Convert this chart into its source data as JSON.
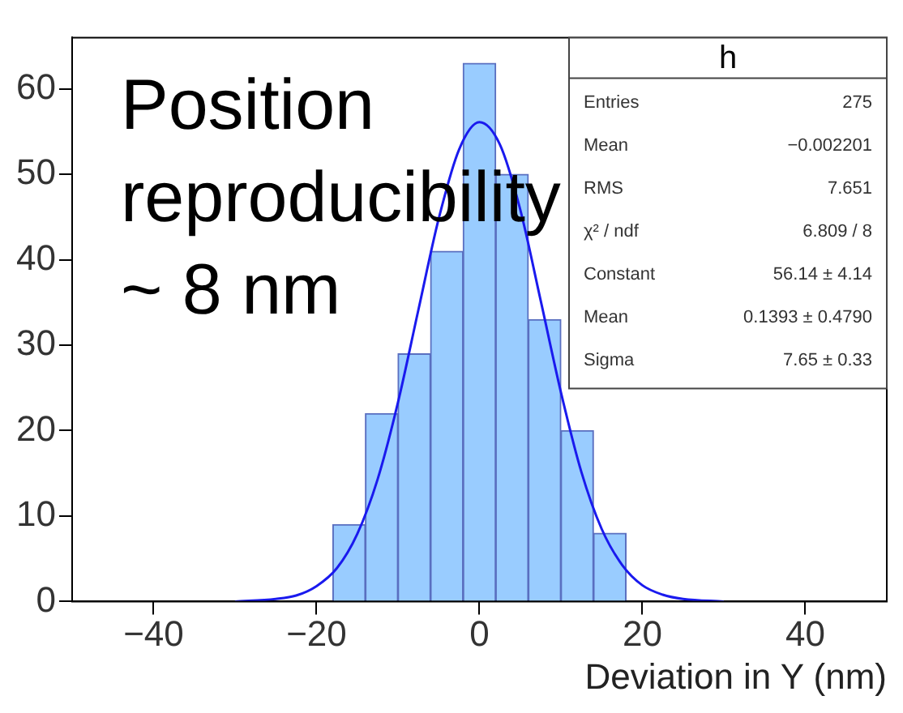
{
  "chart_data": {
    "type": "histogram",
    "xlabel": "Deviation in Y (nm)",
    "bins": [
      -18,
      -14,
      -10,
      -6,
      -2,
      2,
      6,
      10,
      14,
      18
    ],
    "values": [
      9,
      22,
      29,
      41,
      63,
      50,
      33,
      20,
      8
    ],
    "color": "#99ccff",
    "series": [
      {
        "type": "line",
        "color": "#1a1aee",
        "x": [
          -30,
          -25,
          -22.5,
          -20,
          -17.5,
          -15,
          -12.5,
          -10,
          -7.5,
          -5,
          -2.5,
          0,
          2.5,
          5,
          7.5,
          10,
          12.5,
          15,
          17.5,
          20,
          22.5,
          25,
          30
        ],
        "values": [
          0,
          0.3,
          0.7,
          1.8,
          3.9,
          7.9,
          14.3,
          23.3,
          34.1,
          44.8,
          52.9,
          56.1,
          53.5,
          45.9,
          35.3,
          24.5,
          15.2,
          8.5,
          4.3,
          1.9,
          0.8,
          0.3,
          0
        ]
      }
    ],
    "xlim": [
      -50,
      50
    ],
    "xticks": [
      -40,
      -20,
      0,
      20,
      40
    ],
    "ylim": [
      0,
      66
    ],
    "yticks": [
      0,
      10,
      20,
      30,
      40,
      50,
      60
    ],
    "grid": false,
    "legend": false,
    "marker": "none",
    "line_style": "solid",
    "annotations": [
      "Position reproducibility ~ 8 nm",
      "h",
      "Entries",
      "275",
      "Mean",
      "−0.002201",
      "RMS",
      "7.651",
      "χ² / ndf",
      "6.809 / 8",
      "Constant",
      "56.14 ± 4.14",
      "Mean",
      "0.1393 ± 0.4790",
      "Sigma",
      "7.65 ± 0.33"
    ]
  }
}
